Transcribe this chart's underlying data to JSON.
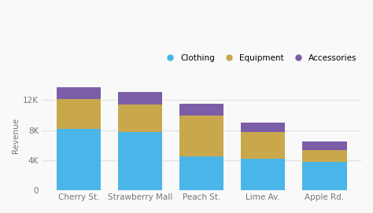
{
  "categories": [
    "Cherry St.",
    "Strawberry Mall",
    "Peach St.",
    "Lime Av.",
    "Apple Rd."
  ],
  "clothing": [
    8200,
    7700,
    4500,
    4200,
    3800
  ],
  "equipment": [
    4000,
    3700,
    5500,
    3500,
    1500
  ],
  "accessories": [
    1500,
    1700,
    1500,
    1300,
    1200
  ],
  "colors": {
    "clothing": "#4ab5e8",
    "equipment": "#c9a84c",
    "accessories": "#7b5ea7"
  },
  "legend_labels": [
    "Clothing",
    "Equipment",
    "Accessories"
  ],
  "ylabel": "Revenue",
  "ylim": [
    0,
    14500
  ],
  "yticks": [
    0,
    4000,
    8000,
    12000
  ],
  "ytick_labels": [
    "0",
    "4K",
    "8K",
    "12K"
  ],
  "background_color": "#f9f9f9",
  "grid_color": "#e0e0e0",
  "bar_width": 0.72
}
